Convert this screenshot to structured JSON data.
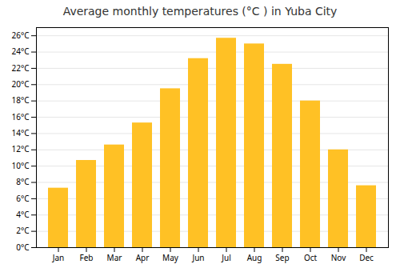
{
  "chart_data": {
    "type": "bar",
    "title": "Average monthly temperatures (°C ) in Yuba City",
    "categories": [
      "Jan",
      "Feb",
      "Mar",
      "Apr",
      "May",
      "Jun",
      "Jul",
      "Aug",
      "Sep",
      "Oct",
      "Nov",
      "Dec"
    ],
    "values": [
      7.3,
      10.7,
      12.6,
      15.3,
      19.5,
      23.2,
      25.7,
      25.0,
      22.5,
      18.0,
      12.0,
      7.6
    ],
    "color": "#FFC125",
    "ylim": [
      0,
      27
    ],
    "yticks": [
      {
        "value": 0,
        "label": "0°C"
      },
      {
        "value": 2,
        "label": "2°C"
      },
      {
        "value": 4,
        "label": "4°C"
      },
      {
        "value": 6,
        "label": "6°C"
      },
      {
        "value": 8,
        "label": "8°C"
      },
      {
        "value": 10,
        "label": "10°C"
      },
      {
        "value": 12,
        "label": "12°C"
      },
      {
        "value": 14,
        "label": "14°C"
      },
      {
        "value": 16,
        "label": "16°C"
      },
      {
        "value": 18,
        "label": "18°C"
      },
      {
        "value": 20,
        "label": "20°C"
      },
      {
        "value": 22,
        "label": "22°C"
      },
      {
        "value": 24,
        "label": "24°C"
      },
      {
        "value": 26,
        "label": "26°C"
      }
    ],
    "grid": true
  }
}
